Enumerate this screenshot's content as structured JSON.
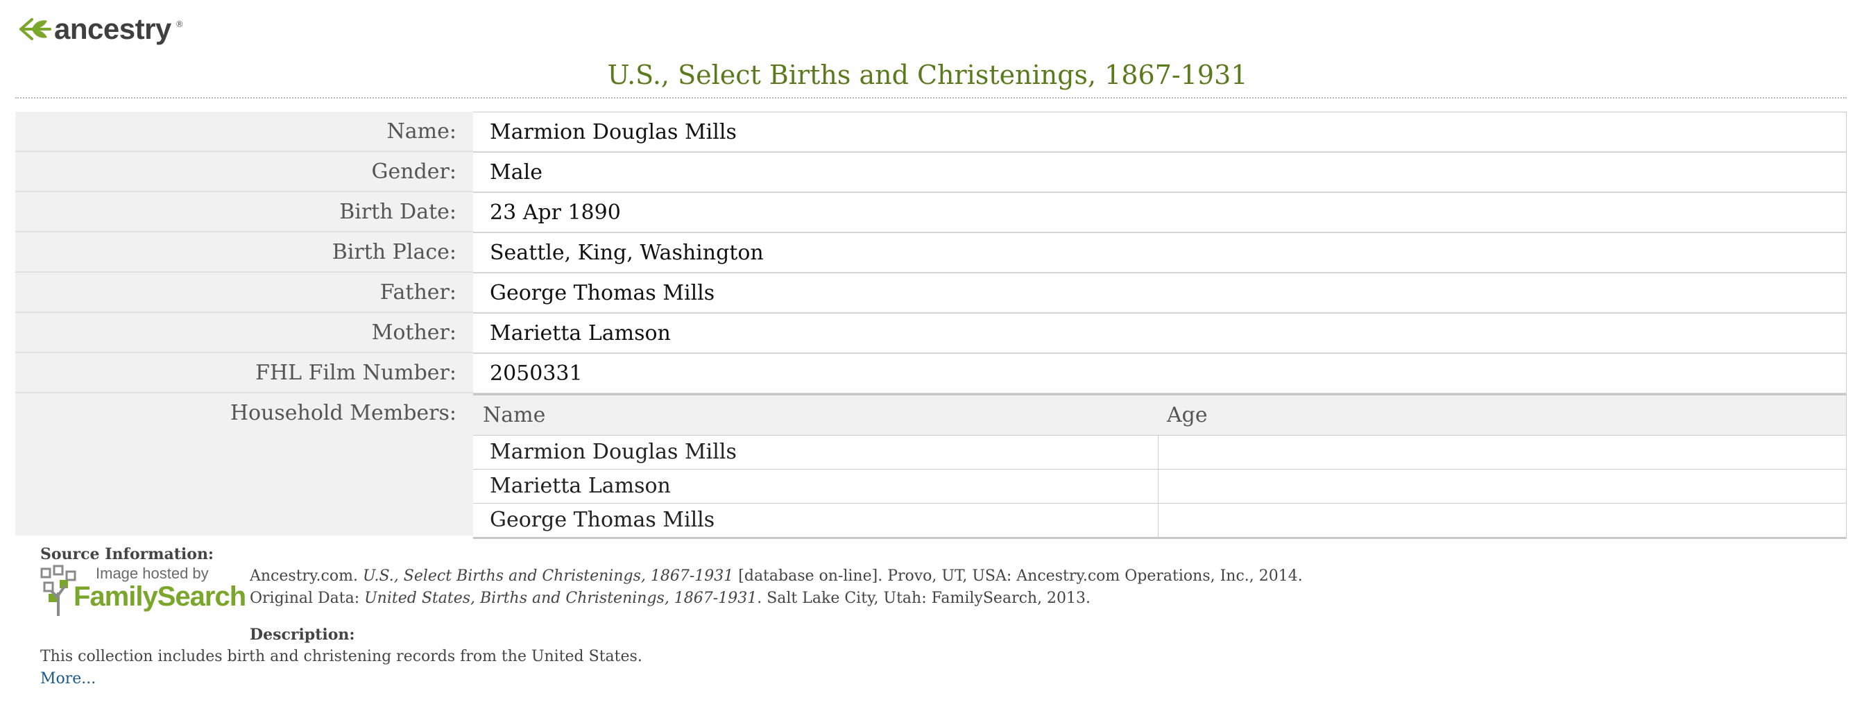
{
  "logo": {
    "text": "ancestry",
    "tm": "®"
  },
  "title": "U.S., Select Births and Christenings, 1867-1931",
  "fields": [
    {
      "label": "Name:",
      "value": "Marmion Douglas Mills"
    },
    {
      "label": "Gender:",
      "value": "Male"
    },
    {
      "label": "Birth Date:",
      "value": "23 Apr 1890"
    },
    {
      "label": "Birth Place:",
      "value": "Seattle, King, Washington"
    },
    {
      "label": "Father:",
      "value": "George Thomas Mills"
    },
    {
      "label": "Mother:",
      "value": "Marietta Lamson"
    },
    {
      "label": "FHL Film Number:",
      "value": "2050331"
    }
  ],
  "household": {
    "label": "Household Members:",
    "columns": [
      "Name",
      "Age"
    ],
    "rows": [
      {
        "name": "Marmion Douglas Mills",
        "age": ""
      },
      {
        "name": "Marietta Lamson",
        "age": ""
      },
      {
        "name": "George Thomas Mills",
        "age": ""
      }
    ]
  },
  "source": {
    "heading": "Source Information:",
    "hosted_by": "Image hosted by",
    "hosted_name": "FamilySearch",
    "cite1_pre": "Ancestry.com. ",
    "cite1_title": "U.S., Select Births and Christenings, 1867-1931",
    "cite1_post": " [database on-line]. Provo, UT, USA: Ancestry.com Operations, Inc., 2014.",
    "cite2_pre": "Original Data: ",
    "cite2_title": "United States, Births and Christenings, 1867-1931",
    "cite2_post": ". Salt Lake City, Utah: FamilySearch, 2013."
  },
  "description": {
    "heading": "Description:",
    "text": "This collection includes birth and christening records from the United States.",
    "more": "More..."
  },
  "colors": {
    "title": "#5b7a1e",
    "logo_leaf": "#7aa62c",
    "link": "#1a5a8a"
  }
}
